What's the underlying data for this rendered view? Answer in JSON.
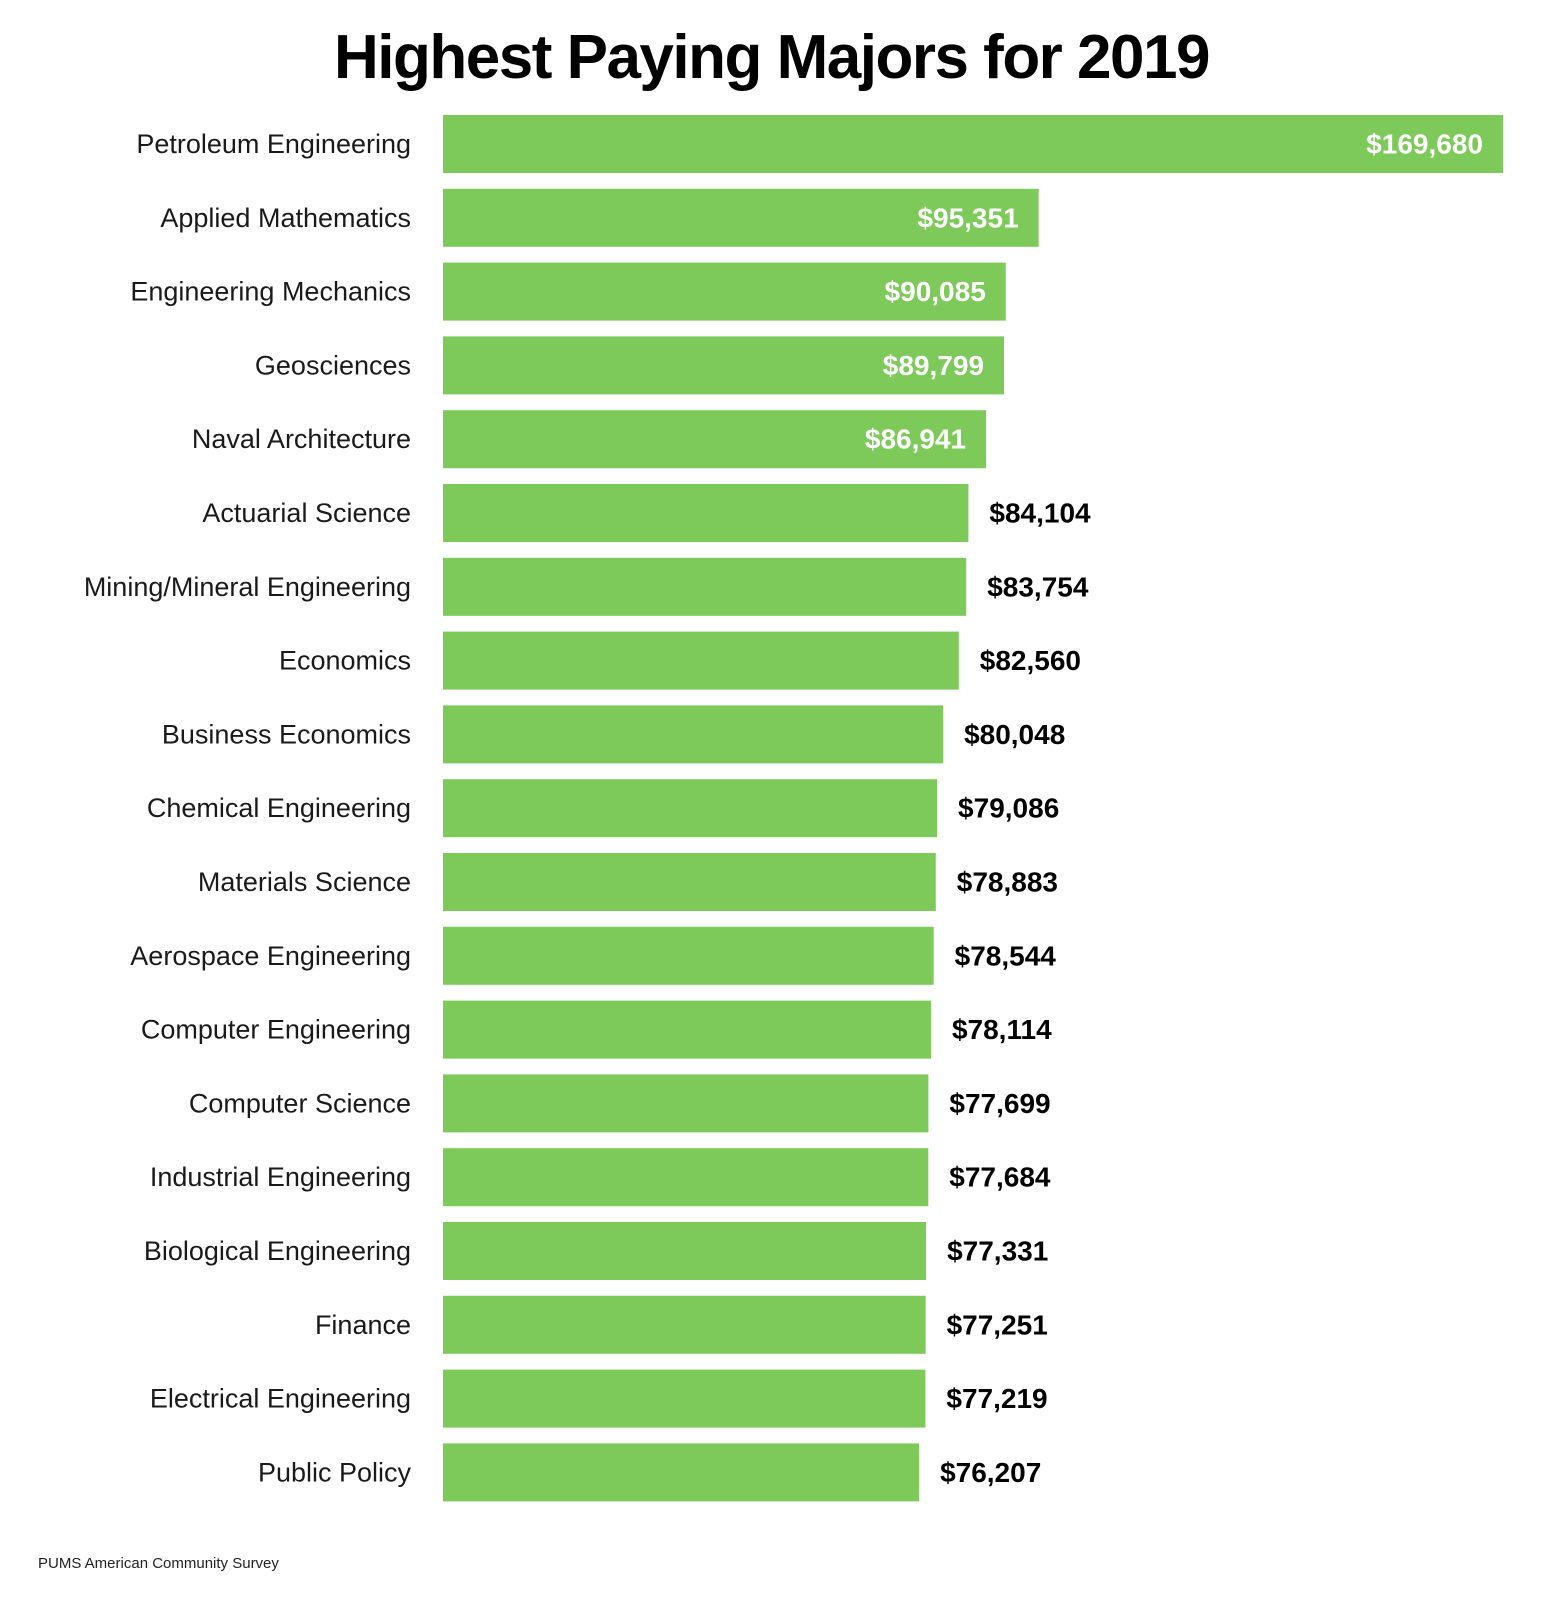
{
  "chart_data": {
    "type": "bar",
    "orientation": "horizontal",
    "title": "Highest Paying Majors for 2019",
    "xlabel": "",
    "ylabel": "",
    "grid": false,
    "legend": "none",
    "categories": [
      "Petroleum Engineering",
      "Applied Mathematics",
      "Engineering Mechanics",
      "Geosciences",
      "Naval Architecture",
      "Actuarial Science",
      "Mining/Mineral Engineering",
      "Economics",
      "Business Economics",
      "Chemical Engineering",
      "Materials Science",
      "Aerospace Engineering",
      "Computer Engineering",
      "Computer Science",
      "Industrial Engineering",
      "Biological Engineering",
      "Finance",
      "Electrical Engineering",
      "Public Policy"
    ],
    "values": [
      169680,
      95351,
      90085,
      89799,
      86941,
      84104,
      83754,
      82560,
      80048,
      79086,
      78883,
      78544,
      78114,
      77699,
      77684,
      77331,
      77251,
      77219,
      76207
    ],
    "value_labels": [
      "$169,680",
      "$95,351",
      "$90,085",
      "$89,799",
      "$86,941",
      "$84,104",
      "$83,754",
      "$82,560",
      "$80,048",
      "$79,086",
      "$78,883",
      "$78,544",
      "$78,114",
      "$77,699",
      "$77,684",
      "$77,331",
      "$77,251",
      "$77,219",
      "$76,207"
    ],
    "labels_inside_for_top": 5,
    "xlim": [
      0,
      169680
    ]
  },
  "colors": {
    "bar": "#7dc959",
    "label_inside": "#ffffff",
    "label_outside": "#000000"
  },
  "source": "PUMS American Community Survey"
}
